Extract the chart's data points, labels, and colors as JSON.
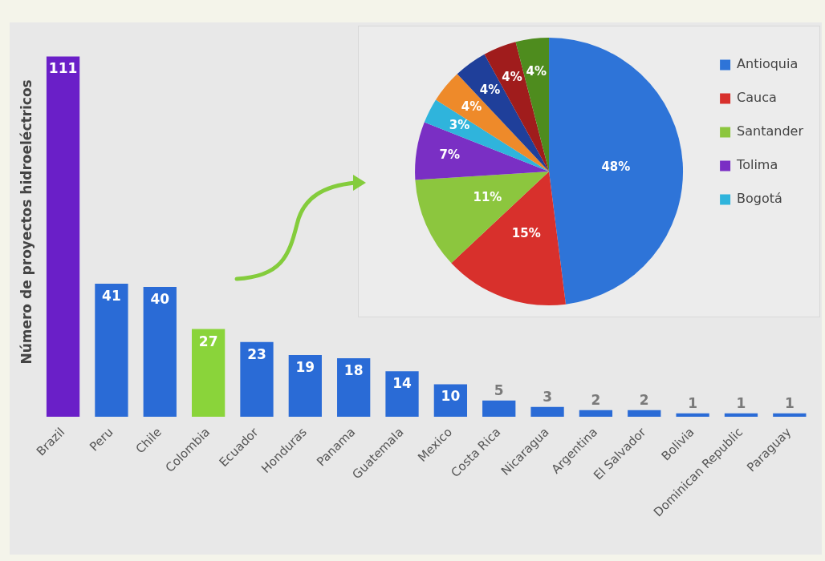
{
  "chart_data": [
    {
      "type": "bar",
      "ylabel": "Número de proyectos hidroeléctricos",
      "categories": [
        "Brazil",
        "Peru",
        "Chile",
        "Colombia",
        "Ecuador",
        "Honduras",
        "Panama",
        "Guatemala",
        "Mexico",
        "Costa Rica",
        "Nicaragua",
        "Argentina",
        "El Salvador",
        "Bolivia",
        "Dominican Republic",
        "Paraguay"
      ],
      "values": [
        111,
        41,
        40,
        27,
        23,
        19,
        18,
        14,
        10,
        5,
        3,
        2,
        2,
        1,
        1,
        1
      ],
      "colors": [
        "#6a1fc8",
        "#2a6bd6",
        "#2a6bd6",
        "#8ad43a",
        "#2a6bd6",
        "#2a6bd6",
        "#2a6bd6",
        "#2a6bd6",
        "#2a6bd6",
        "#2a6bd6",
        "#2a6bd6",
        "#2a6bd6",
        "#2a6bd6",
        "#2a6bd6",
        "#2a6bd6",
        "#2a6bd6"
      ],
      "data_labels": true,
      "grid": false,
      "tick_labels": "x"
    },
    {
      "type": "pie",
      "categories": [
        "Antioquia",
        "Cauca",
        "Santander",
        "Tolima",
        "Bogotá",
        null,
        null,
        null,
        null
      ],
      "values": [
        48,
        15,
        11,
        7,
        3,
        4,
        4,
        4,
        4
      ],
      "colors": [
        "#2e74d8",
        "#d8302c",
        "#8cc63e",
        "#7a2fc4",
        "#2fb4dc",
        "#ee8a2a",
        "#1f3f9a",
        "#a01c1c",
        "#4e8c1e"
      ],
      "value_labels": [
        "48%",
        "15%",
        "11%",
        "7%",
        "3%",
        "4%",
        "4%",
        "4%",
        "4%"
      ],
      "legend": "right"
    }
  ]
}
